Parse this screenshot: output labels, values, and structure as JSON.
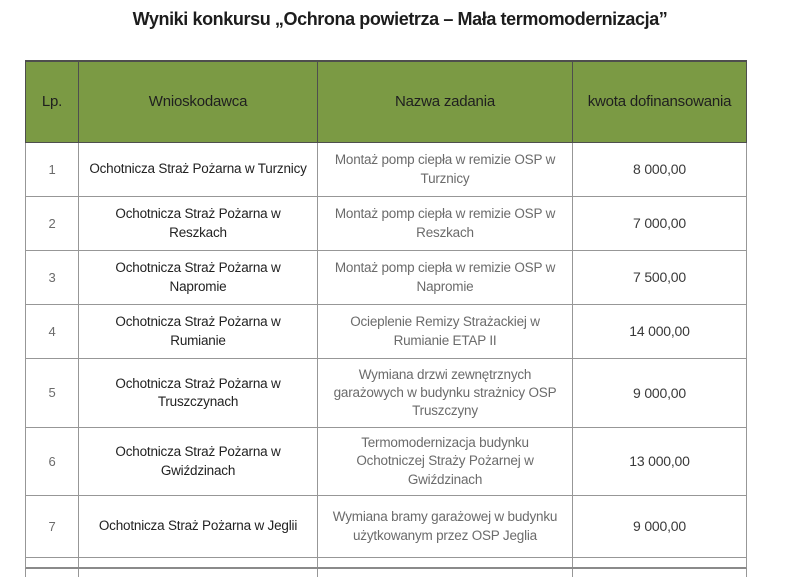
{
  "title": "Wyniki konkursu „Ochrona powietrza – Mała termomodernizacja”",
  "table": {
    "headers": {
      "lp": "Lp.",
      "applicant": "Wnioskodawca",
      "task": "Nazwa zadania",
      "amount": "kwota dofinansowania"
    },
    "rows": [
      {
        "lp": "1",
        "applicant": "Ochotnicza Straż Pożarna w Turznicy",
        "task": "Montaż pomp ciepła w remizie OSP w Turznicy",
        "amount": "8 000,00"
      },
      {
        "lp": "2",
        "applicant": "Ochotnicza Straż Pożarna w Reszkach",
        "task": "Montaż pomp ciepła w remizie OSP w Reszkach",
        "amount": "7 000,00"
      },
      {
        "lp": "3",
        "applicant": "Ochotnicza Straż Pożarna w Napromie",
        "task": "Montaż pomp ciepła w remizie OSP w Napromie",
        "amount": "7 500,00"
      },
      {
        "lp": "4",
        "applicant": "Ochotnicza Straż Pożarna w Rumianie",
        "task": "Ocieplenie Remizy Strażackiej w Rumianie ETAP II",
        "amount": "14 000,00"
      },
      {
        "lp": "5",
        "applicant": "Ochotnicza Straż Pożarna w Truszczynach",
        "task": "Wymiana drzwi zewnętrznych garażowych w budynku strażnicy OSP Truszczyny",
        "amount": "9 000,00"
      },
      {
        "lp": "6",
        "applicant": "Ochotnicza Straż Pożarna w Gwiździnach",
        "task": "Termomodernizacja budynku Ochotniczej Straży Pożarnej w Gwiździnach",
        "amount": "13 000,00"
      },
      {
        "lp": "7",
        "applicant": "Ochotnicza Straż Pożarna w Jeglii",
        "task": "Wymiana bramy garażowej w budynku użytkowanym przez OSP Jeglia",
        "amount": "9 000,00"
      }
    ]
  },
  "colors": {
    "header_bg": "#7b9a44",
    "border_dark": "#4e4e4e",
    "border_light": "#979797"
  }
}
